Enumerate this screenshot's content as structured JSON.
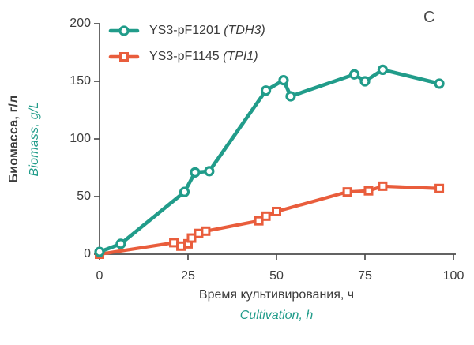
{
  "panel_label": "C",
  "colors": {
    "teal": "#219C8A",
    "orange": "#E95D3C",
    "axis": "#4D4D4D",
    "text": "#3C3C3C",
    "marker_fill": "#FFFFFF"
  },
  "y_axis": {
    "label_ru": "Биомасса, г/л",
    "label_en": "Biomass, g/L",
    "ticks": [
      0,
      50,
      100,
      150,
      200
    ]
  },
  "x_axis": {
    "label_ru": "Время культивирования, ч",
    "label_en": "Cultivation, h",
    "ticks": [
      0,
      25,
      50,
      75,
      100
    ]
  },
  "legend": {
    "items": [
      {
        "label": "YS3-pF1201",
        "gene": "(TDH3)",
        "marker": "circle",
        "color": "#219C8A"
      },
      {
        "label": "YS3-pF1145",
        "gene": "(TPI1)",
        "marker": "square",
        "color": "#E95D3C"
      }
    ],
    "position": "top-left-inside"
  },
  "chart_data": {
    "type": "line",
    "title": "",
    "xlabel": "Время культивирования, ч / Cultivation, h",
    "ylabel": "Биомасса, г/л / Biomass, g/L",
    "xlim": [
      0,
      100
    ],
    "ylim": [
      0,
      200
    ],
    "grid": false,
    "legend_position": "upper left",
    "series": [
      {
        "name": "YS3-pF1201 (TDH3)",
        "color": "#219C8A",
        "marker": "circle",
        "points": [
          [
            0,
            2
          ],
          [
            6,
            9
          ],
          [
            24,
            54
          ],
          [
            27,
            71
          ],
          [
            31,
            72
          ],
          [
            47,
            142
          ],
          [
            52,
            151
          ],
          [
            54,
            137
          ],
          [
            72,
            156
          ],
          [
            75,
            150
          ],
          [
            80,
            160
          ],
          [
            96,
            148
          ]
        ]
      },
      {
        "name": "YS3-pF1145 (TPI1)",
        "color": "#E95D3C",
        "marker": "square",
        "points": [
          [
            0,
            0
          ],
          [
            21,
            10
          ],
          [
            23,
            7
          ],
          [
            25,
            9
          ],
          [
            26,
            14
          ],
          [
            28,
            18
          ],
          [
            30,
            20
          ],
          [
            45,
            29
          ],
          [
            47,
            33
          ],
          [
            50,
            37
          ],
          [
            70,
            54
          ],
          [
            76,
            55
          ],
          [
            80,
            59
          ],
          [
            96,
            57
          ]
        ]
      }
    ]
  }
}
